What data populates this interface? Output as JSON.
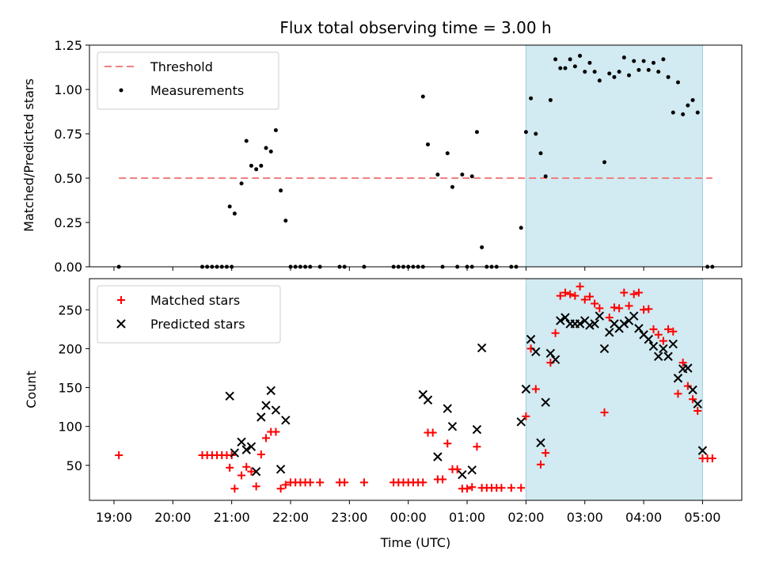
{
  "chart_data": [
    {
      "type": "scatter",
      "title": "Flux total observing time = 3.00 h",
      "xlabel": "",
      "ylabel": "Matched/Predicted stars",
      "xlim": [
        "18:35",
        "05:40"
      ],
      "ylim": [
        0,
        1.25
      ],
      "yticks": [
        "0.00",
        "0.25",
        "0.50",
        "0.75",
        "1.00",
        "1.25"
      ],
      "x_tick_positions": [
        "19:00",
        "20:00",
        "21:00",
        "22:00",
        "23:00",
        "00:00",
        "01:00",
        "02:00",
        "03:00",
        "04:00",
        "05:00"
      ],
      "shaded_interval": {
        "start": "02:00",
        "end": "05:00",
        "color": "#add8e6"
      },
      "threshold": {
        "name": "Threshold",
        "value": 0.5,
        "x_range": [
          "19:05",
          "05:10"
        ],
        "color": "#f08080",
        "style": "dashed"
      },
      "legend_position": "upper-left",
      "series": [
        {
          "name": "Measurements",
          "marker": "dot",
          "color": "#000000",
          "points": [
            [
              "19:05",
              0
            ],
            [
              "20:30",
              0
            ],
            [
              "20:35",
              0
            ],
            [
              "20:40",
              0
            ],
            [
              "20:45",
              0
            ],
            [
              "20:50",
              0
            ],
            [
              "20:55",
              0
            ],
            [
              "21:00",
              0
            ],
            [
              "20:58",
              0.34
            ],
            [
              "21:03",
              0.3
            ],
            [
              "21:10",
              0.47
            ],
            [
              "21:15",
              0.71
            ],
            [
              "21:20",
              0.57
            ],
            [
              "21:25",
              0.55
            ],
            [
              "21:30",
              0.57
            ],
            [
              "21:35",
              0.67
            ],
            [
              "21:40",
              0.65
            ],
            [
              "21:45",
              0.77
            ],
            [
              "21:50",
              0.43
            ],
            [
              "21:55",
              0.26
            ],
            [
              "22:00",
              0
            ],
            [
              "22:05",
              0
            ],
            [
              "22:10",
              0
            ],
            [
              "22:15",
              0
            ],
            [
              "22:20",
              0
            ],
            [
              "22:30",
              0
            ],
            [
              "22:50",
              0
            ],
            [
              "22:55",
              0
            ],
            [
              "23:15",
              0
            ],
            [
              "23:45",
              0
            ],
            [
              "23:50",
              0
            ],
            [
              "23:55",
              0
            ],
            [
              "00:00",
              0
            ],
            [
              "00:05",
              0
            ],
            [
              "00:10",
              0
            ],
            [
              "00:15",
              0
            ],
            [
              "00:15",
              0.96
            ],
            [
              "00:20",
              0.69
            ],
            [
              "00:30",
              0.52
            ],
            [
              "00:40",
              0.64
            ],
            [
              "00:45",
              0.45
            ],
            [
              "00:55",
              0.52
            ],
            [
              "01:05",
              0.51
            ],
            [
              "01:10",
              0.76
            ],
            [
              "01:15",
              0.11
            ],
            [
              "00:35",
              0
            ],
            [
              "00:50",
              0
            ],
            [
              "01:00",
              0
            ],
            [
              "01:05",
              0
            ],
            [
              "01:20",
              0
            ],
            [
              "01:25",
              0
            ],
            [
              "01:30",
              0
            ],
            [
              "01:45",
              0
            ],
            [
              "01:50",
              0
            ],
            [
              "01:55",
              0.22
            ],
            [
              "02:00",
              0.76
            ],
            [
              "02:05",
              0.95
            ],
            [
              "02:10",
              0.75
            ],
            [
              "02:15",
              0.64
            ],
            [
              "02:20",
              0.51
            ],
            [
              "02:25",
              0.94
            ],
            [
              "02:30",
              1.17
            ],
            [
              "02:35",
              1.12
            ],
            [
              "02:40",
              1.12
            ],
            [
              "02:45",
              1.17
            ],
            [
              "02:50",
              1.13
            ],
            [
              "02:55",
              1.19
            ],
            [
              "03:00",
              1.1
            ],
            [
              "03:05",
              1.15
            ],
            [
              "03:10",
              1.1
            ],
            [
              "03:15",
              1.05
            ],
            [
              "03:20",
              0.59
            ],
            [
              "03:25",
              1.09
            ],
            [
              "03:30",
              1.07
            ],
            [
              "03:35",
              1.1
            ],
            [
              "03:40",
              1.18
            ],
            [
              "03:45",
              1.08
            ],
            [
              "03:50",
              1.16
            ],
            [
              "03:55",
              1.11
            ],
            [
              "04:00",
              1.16
            ],
            [
              "04:05",
              1.11
            ],
            [
              "04:10",
              1.15
            ],
            [
              "04:15",
              1.1
            ],
            [
              "04:20",
              1.17
            ],
            [
              "04:25",
              1.07
            ],
            [
              "04:30",
              0.87
            ],
            [
              "04:35",
              1.04
            ],
            [
              "04:40",
              0.86
            ],
            [
              "04:45",
              0.91
            ],
            [
              "04:50",
              0.94
            ],
            [
              "04:55",
              0.87
            ],
            [
              "05:05",
              0
            ],
            [
              "05:10",
              0
            ]
          ]
        }
      ]
    },
    {
      "type": "scatter",
      "title": "",
      "xlabel": "Time (UTC)",
      "ylabel": "Count",
      "xlim": [
        "18:35",
        "05:40"
      ],
      "ylim": [
        5,
        290
      ],
      "yticks": [
        "50",
        "100",
        "150",
        "200",
        "250"
      ],
      "xticks": [
        "19:00",
        "20:00",
        "21:00",
        "22:00",
        "23:00",
        "00:00",
        "01:00",
        "02:00",
        "03:00",
        "04:00",
        "05:00"
      ],
      "shaded_interval": {
        "start": "02:00",
        "end": "05:00",
        "color": "#add8e6"
      },
      "legend_position": "upper-left",
      "series": [
        {
          "name": "Matched stars",
          "marker": "plus",
          "color": "#ff0000",
          "points": [
            [
              "19:05",
              63
            ],
            [
              "20:30",
              63
            ],
            [
              "20:35",
              63
            ],
            [
              "20:40",
              63
            ],
            [
              "20:45",
              63
            ],
            [
              "20:50",
              63
            ],
            [
              "20:55",
              63
            ],
            [
              "21:00",
              63
            ],
            [
              "20:58",
              47
            ],
            [
              "21:03",
              20
            ],
            [
              "21:10",
              37
            ],
            [
              "21:15",
              48
            ],
            [
              "21:20",
              42
            ],
            [
              "21:25",
              23
            ],
            [
              "21:30",
              64
            ],
            [
              "21:35",
              85
            ],
            [
              "21:40",
              93
            ],
            [
              "21:45",
              93
            ],
            [
              "21:50",
              20
            ],
            [
              "21:55",
              25
            ],
            [
              "22:00",
              28
            ],
            [
              "22:05",
              28
            ],
            [
              "22:10",
              28
            ],
            [
              "22:15",
              28
            ],
            [
              "22:20",
              28
            ],
            [
              "22:30",
              28
            ],
            [
              "22:50",
              28
            ],
            [
              "22:55",
              28
            ],
            [
              "23:15",
              28
            ],
            [
              "23:45",
              28
            ],
            [
              "23:50",
              28
            ],
            [
              "23:55",
              28
            ],
            [
              "00:00",
              28
            ],
            [
              "00:05",
              28
            ],
            [
              "00:10",
              28
            ],
            [
              "00:15",
              28
            ],
            [
              "00:20",
              92
            ],
            [
              "00:25",
              92
            ],
            [
              "00:30",
              32
            ],
            [
              "00:35",
              32
            ],
            [
              "00:40",
              78
            ],
            [
              "00:45",
              45
            ],
            [
              "00:50",
              45
            ],
            [
              "00:55",
              20
            ],
            [
              "01:00",
              20
            ],
            [
              "01:05",
              22
            ],
            [
              "01:10",
              74
            ],
            [
              "01:15",
              21
            ],
            [
              "01:20",
              21
            ],
            [
              "01:25",
              21
            ],
            [
              "01:30",
              21
            ],
            [
              "01:35",
              21
            ],
            [
              "01:45",
              21
            ],
            [
              "01:55",
              21
            ],
            [
              "02:00",
              113
            ],
            [
              "02:05",
              200
            ],
            [
              "02:10",
              148
            ],
            [
              "02:15",
              51
            ],
            [
              "02:20",
              66
            ],
            [
              "02:25",
              182
            ],
            [
              "02:30",
              220
            ],
            [
              "02:35",
              268
            ],
            [
              "02:40",
              272
            ],
            [
              "02:45",
              270
            ],
            [
              "02:50",
              268
            ],
            [
              "02:55",
              280
            ],
            [
              "03:00",
              263
            ],
            [
              "03:05",
              267
            ],
            [
              "03:10",
              258
            ],
            [
              "03:15",
              252
            ],
            [
              "03:20",
              118
            ],
            [
              "03:25",
              240
            ],
            [
              "03:30",
              253
            ],
            [
              "03:35",
              252
            ],
            [
              "03:40",
              272
            ],
            [
              "03:45",
              255
            ],
            [
              "03:50",
              270
            ],
            [
              "03:55",
              272
            ],
            [
              "04:00",
              250
            ],
            [
              "04:05",
              251
            ],
            [
              "04:10",
              225
            ],
            [
              "04:15",
              218
            ],
            [
              "04:20",
              210
            ],
            [
              "04:25",
              225
            ],
            [
              "04:30",
              222
            ],
            [
              "04:35",
              142
            ],
            [
              "04:40",
              182
            ],
            [
              "04:45",
              152
            ],
            [
              "04:50",
              135
            ],
            [
              "04:55",
              120
            ],
            [
              "05:00",
              59
            ],
            [
              "05:05",
              59
            ],
            [
              "05:10",
              59
            ]
          ]
        },
        {
          "name": "Predicted stars",
          "marker": "x",
          "color": "#000000",
          "points": [
            [
              "20:58",
              139
            ],
            [
              "21:03",
              66
            ],
            [
              "21:10",
              80
            ],
            [
              "21:15",
              70
            ],
            [
              "21:20",
              74
            ],
            [
              "21:25",
              42
            ],
            [
              "21:30",
              112
            ],
            [
              "21:35",
              127
            ],
            [
              "21:40",
              146
            ],
            [
              "21:45",
              121
            ],
            [
              "21:50",
              45
            ],
            [
              "21:55",
              108
            ],
            [
              "00:15",
              141
            ],
            [
              "00:20",
              134
            ],
            [
              "00:30",
              61
            ],
            [
              "00:40",
              123
            ],
            [
              "00:45",
              100
            ],
            [
              "00:55",
              38
            ],
            [
              "01:05",
              44
            ],
            [
              "01:10",
              96
            ],
            [
              "01:15",
              201
            ],
            [
              "01:55",
              106
            ],
            [
              "02:00",
              148
            ],
            [
              "02:05",
              212
            ],
            [
              "02:10",
              196
            ],
            [
              "02:15",
              79
            ],
            [
              "02:20",
              131
            ],
            [
              "02:25",
              194
            ],
            [
              "02:30",
              186
            ],
            [
              "02:35",
              236
            ],
            [
              "02:40",
              240
            ],
            [
              "02:45",
              232
            ],
            [
              "02:50",
              232
            ],
            [
              "02:55",
              232
            ],
            [
              "03:00",
              236
            ],
            [
              "03:05",
              230
            ],
            [
              "03:10",
              232
            ],
            [
              "03:15",
              242
            ],
            [
              "03:20",
              200
            ],
            [
              "03:25",
              221
            ],
            [
              "03:30",
              232
            ],
            [
              "03:35",
              226
            ],
            [
              "03:40",
              232
            ],
            [
              "03:45",
              236
            ],
            [
              "03:50",
              242
            ],
            [
              "03:55",
              226
            ],
            [
              "04:00",
              218
            ],
            [
              "04:05",
              212
            ],
            [
              "04:10",
              203
            ],
            [
              "04:15",
              190
            ],
            [
              "04:20",
              200
            ],
            [
              "04:25",
              190
            ],
            [
              "04:30",
              206
            ],
            [
              "04:35",
              162
            ],
            [
              "04:40",
              174
            ],
            [
              "04:45",
              175
            ],
            [
              "04:50",
              147
            ],
            [
              "04:55",
              129
            ],
            [
              "05:00",
              69
            ]
          ]
        }
      ]
    }
  ]
}
